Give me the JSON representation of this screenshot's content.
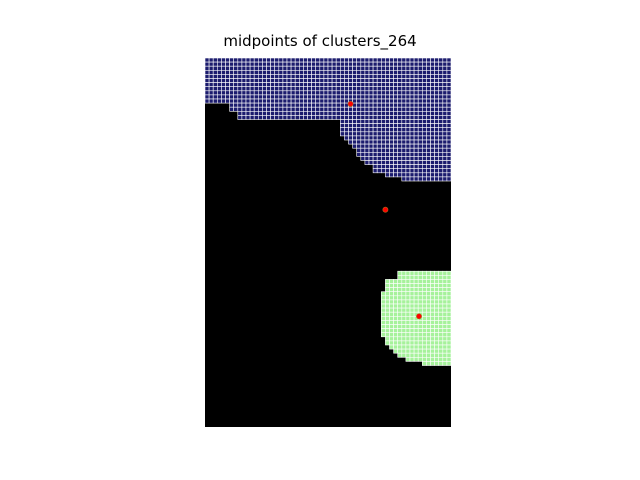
{
  "chart_data": {
    "type": "heatmap",
    "title": "midpoints of clusters_264",
    "xlabel": "",
    "ylabel": "",
    "axes": "off",
    "grid_size": [
      60,
      90
    ],
    "colors": {
      "background": "#000000",
      "cluster_top": "#1c1c6e",
      "cluster_bottom": "#a6f29b",
      "cell_grid_line": "#ffffff",
      "midpoint": "#ff0000",
      "midpoint_outline": "#b06a1a"
    },
    "clusters": [
      {
        "name": "top",
        "rows": [
          [
            0,
            0,
            60
          ],
          [
            1,
            0,
            60
          ],
          [
            2,
            0,
            60
          ],
          [
            3,
            0,
            60
          ],
          [
            4,
            0,
            60
          ],
          [
            5,
            0,
            60
          ],
          [
            6,
            0,
            60
          ],
          [
            7,
            0,
            60
          ],
          [
            8,
            0,
            60
          ],
          [
            9,
            0,
            60
          ],
          [
            10,
            0,
            60
          ],
          [
            11,
            6,
            60
          ],
          [
            12,
            6,
            60
          ],
          [
            13,
            8,
            60
          ],
          [
            14,
            8,
            60
          ],
          [
            15,
            33,
            60
          ],
          [
            16,
            33,
            60
          ],
          [
            17,
            33,
            60
          ],
          [
            18,
            33,
            60
          ],
          [
            19,
            34,
            60
          ],
          [
            20,
            35,
            60
          ],
          [
            21,
            36,
            60
          ],
          [
            22,
            37,
            60
          ],
          [
            23,
            37,
            60
          ],
          [
            24,
            38,
            60
          ],
          [
            25,
            39,
            60
          ],
          [
            26,
            41,
            60
          ],
          [
            27,
            41,
            60
          ],
          [
            28,
            44,
            60
          ],
          [
            29,
            48,
            60
          ]
        ]
      },
      {
        "name": "bottom",
        "rows": [
          [
            52,
            47,
            60
          ],
          [
            53,
            47,
            60
          ],
          [
            54,
            44,
            60
          ],
          [
            55,
            44,
            60
          ],
          [
            56,
            44,
            60
          ],
          [
            57,
            43,
            60
          ],
          [
            58,
            43,
            60
          ],
          [
            59,
            43,
            60
          ],
          [
            60,
            43,
            60
          ],
          [
            61,
            43,
            60
          ],
          [
            62,
            43,
            60
          ],
          [
            63,
            43,
            60
          ],
          [
            64,
            43,
            60
          ],
          [
            65,
            43,
            60
          ],
          [
            66,
            43,
            60
          ],
          [
            67,
            43,
            60
          ],
          [
            68,
            44,
            60
          ],
          [
            69,
            44,
            60
          ],
          [
            70,
            45,
            60
          ],
          [
            71,
            46,
            60
          ],
          [
            72,
            47,
            60
          ],
          [
            73,
            49,
            60
          ],
          [
            74,
            53,
            60
          ]
        ]
      }
    ],
    "midpoints": [
      {
        "x": 35.5,
        "y": 11.2
      },
      {
        "x": 44,
        "y": 37
      },
      {
        "x": 52.2,
        "y": 63
      }
    ]
  }
}
